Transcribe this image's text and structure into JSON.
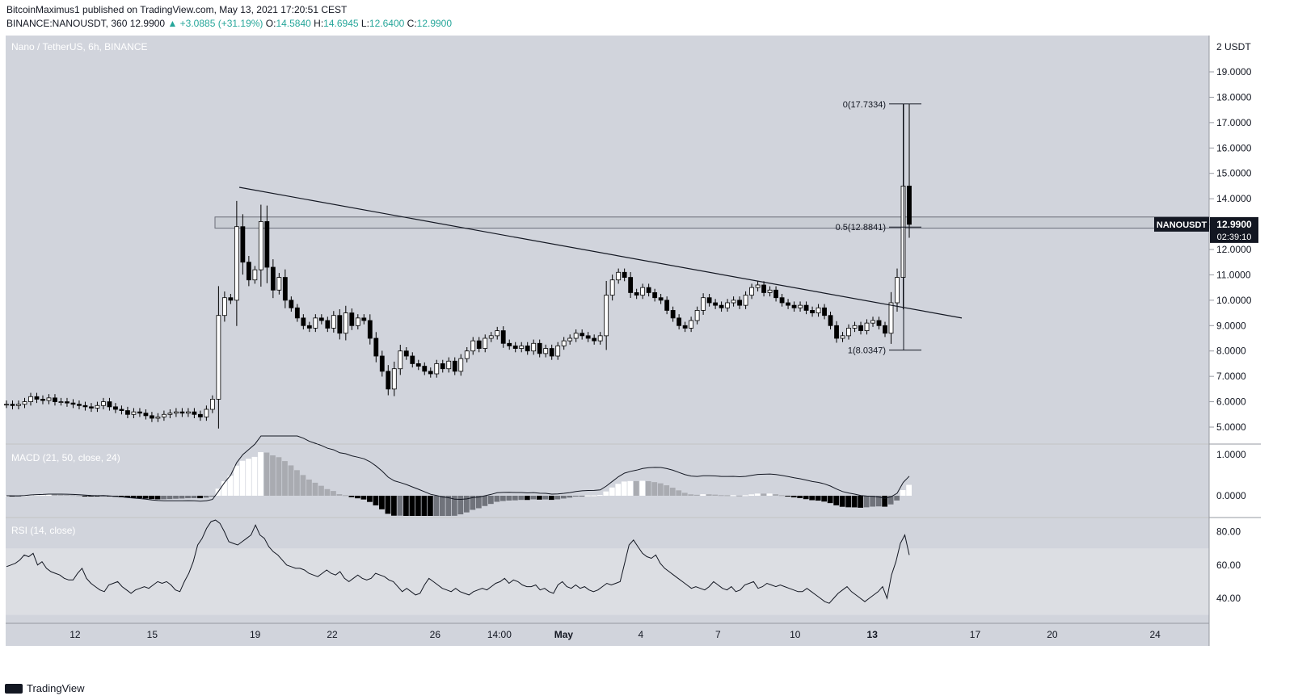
{
  "header": {
    "line1": "BitcoinMaximus1 published on TradingView.com, May 13, 2021 17:20:51 CEST",
    "symbol": "BINANCE:NANOUSDT, 360",
    "last": "12.9900",
    "change": "▲ +3.0885 (+31.19%)",
    "o_label": "O:",
    "o_val": "14.5840",
    "h_label": "H:",
    "h_val": "14.6945",
    "l_label": "L:",
    "l_val": "12.6400",
    "c_label": "C:",
    "c_val": "12.9900"
  },
  "colors": {
    "pane_bg": "#d1d4dc",
    "rsi_band": "#dcdee3",
    "candle_up": "#ffffff",
    "candle_down": "#000000",
    "line": "#131722",
    "positive": "#26a69a"
  },
  "footer": {
    "brand": "TradingView"
  },
  "chart_data": {
    "type": "candlestick",
    "title": "Nano / TetherUS, 6h, BINANCE",
    "price_axis_unit": "USDT",
    "price_ylim": [
      4.5,
      20.0
    ],
    "price_ticks": [
      5,
      6,
      7,
      8,
      9,
      10,
      11,
      12,
      13,
      14,
      15,
      16,
      17,
      18,
      19
    ],
    "price_tick_labels": [
      "5.0000",
      "6.0000",
      "7.0000",
      "8.0000",
      "9.0000",
      "10.0000",
      "11.0000",
      "12.0000",
      "13.0000",
      "14.0000",
      "15.0000",
      "16.0000",
      "17.0000",
      "18.0000",
      "19.0000"
    ],
    "price_top_label": "2 USDT",
    "x_labels": [
      {
        "label": "12",
        "x": 11
      },
      {
        "label": "15",
        "x": 14
      },
      {
        "label": "19",
        "x": 18
      },
      {
        "label": "22",
        "x": 21
      },
      {
        "label": "26",
        "x": 25
      },
      {
        "label": "14:00",
        "x": 27.5
      },
      {
        "label": "May",
        "x": 30
      },
      {
        "label": "4",
        "x": 33
      },
      {
        "label": "7",
        "x": 36
      },
      {
        "label": "10",
        "x": 39
      },
      {
        "label": "13",
        "x": 42
      },
      {
        "label": "17",
        "x": 46
      },
      {
        "label": "20",
        "x": 49
      },
      {
        "label": "24",
        "x": 53
      }
    ],
    "x_range": [
      8.3,
      55.1
    ],
    "closes": [
      5.9,
      5.85,
      5.9,
      6.0,
      6.2,
      6.1,
      6.05,
      6.15,
      6.0,
      6.0,
      5.95,
      5.9,
      5.85,
      5.8,
      5.75,
      5.85,
      6.0,
      5.8,
      5.7,
      5.65,
      5.5,
      5.6,
      5.55,
      5.45,
      5.35,
      5.4,
      5.5,
      5.55,
      5.6,
      5.55,
      5.6,
      5.5,
      5.4,
      5.7,
      6.1,
      9.4,
      10.1,
      10.0,
      12.9,
      11.5,
      10.8,
      11.2,
      13.1,
      11.3,
      10.4,
      10.9,
      10.0,
      9.7,
      9.3,
      9.0,
      8.9,
      9.3,
      9.2,
      8.9,
      9.4,
      8.7,
      9.5,
      9.0,
      9.3,
      9.2,
      8.5,
      7.8,
      7.2,
      6.5,
      7.3,
      8.0,
      7.8,
      7.5,
      7.4,
      7.2,
      7.1,
      7.5,
      7.3,
      7.6,
      7.2,
      7.7,
      8.0,
      8.4,
      8.1,
      8.5,
      8.6,
      8.8,
      8.3,
      8.2,
      8.1,
      8.2,
      8.0,
      8.3,
      7.9,
      8.1,
      7.8,
      8.2,
      8.4,
      8.5,
      8.7,
      8.6,
      8.5,
      8.4,
      8.6,
      10.2,
      10.8,
      11.1,
      10.9,
      10.3,
      10.2,
      10.5,
      10.3,
      10.1,
      10.0,
      9.6,
      9.3,
      9.0,
      8.9,
      9.2,
      9.6,
      10.1,
      9.9,
      9.8,
      9.7,
      9.9,
      10.0,
      9.8,
      10.2,
      10.5,
      10.6,
      10.3,
      10.4,
      10.1,
      9.9,
      9.8,
      9.7,
      9.8,
      9.6,
      9.5,
      9.7,
      9.4,
      9.0,
      8.5,
      8.6,
      8.9,
      9.0,
      8.8,
      9.1,
      9.2,
      9.0,
      8.7,
      9.9,
      10.9,
      14.5,
      12.99
    ],
    "opens_note": "each candle opens at the previous close",
    "fib_levels": [
      {
        "label": "0(17.7334)",
        "value": 17.7334
      },
      {
        "label": "0.5(12.8841)",
        "value": 12.8841
      },
      {
        "label": "1(8.0347)",
        "value": 8.0347
      }
    ],
    "resistance_zone": [
      12.84,
      13.28
    ],
    "trendline": [
      {
        "x": 17.7,
        "y": 14.45
      },
      {
        "x": 45.7,
        "y": 9.3
      }
    ],
    "last_price_label": {
      "symbol": "NANOUSDT",
      "price": "12.9900",
      "countdown": "02:39:10"
    },
    "macd": {
      "label": "MACD (21, 50, close, 24)",
      "ticks": [
        "1.0000",
        "0.0000"
      ]
    },
    "rsi": {
      "label": "RSI (14, close)",
      "ticks": [
        "80.00",
        "60.00",
        "40.00"
      ],
      "band": [
        30,
        70
      ],
      "values": [
        59,
        60,
        61,
        63,
        66,
        65,
        67,
        60,
        62,
        58,
        56,
        55,
        54,
        52,
        51,
        51,
        55,
        58,
        52,
        49,
        47,
        45,
        44,
        48,
        49,
        50,
        47,
        45,
        43,
        45,
        46,
        47,
        46,
        48,
        50,
        49,
        50,
        48,
        45,
        44,
        50,
        55,
        62,
        72,
        76,
        82,
        86,
        87,
        85,
        80,
        74,
        73,
        72,
        74,
        76,
        78,
        84,
        78,
        76,
        71,
        68,
        66,
        63,
        60,
        59,
        58,
        58,
        57,
        55,
        54,
        53,
        55,
        57,
        55,
        54,
        56,
        52,
        50,
        52,
        54,
        52,
        51,
        52,
        55,
        54,
        53,
        51,
        50,
        47,
        44,
        46,
        44,
        42,
        43,
        48,
        52,
        50,
        48,
        46,
        45,
        44,
        46,
        44,
        43,
        42,
        44,
        45,
        46,
        45,
        47,
        49,
        50,
        52,
        49,
        51,
        50,
        48,
        47,
        47,
        48,
        45,
        46,
        44,
        43,
        48,
        50,
        47,
        46,
        48,
        46,
        47,
        45,
        44,
        45,
        47,
        49,
        48,
        49,
        50,
        61,
        72,
        75,
        71,
        67,
        65,
        64,
        66,
        61,
        58,
        56,
        54,
        52,
        50,
        48,
        46,
        47,
        46,
        45,
        47,
        50,
        48,
        46,
        45,
        47,
        44,
        45,
        48,
        49,
        50,
        46,
        47,
        49,
        48,
        47,
        48,
        47,
        46,
        45,
        44,
        44,
        46,
        44,
        42,
        40,
        38,
        37,
        40,
        43,
        45,
        47,
        44,
        42,
        40,
        38,
        40,
        42,
        44,
        47,
        40,
        54,
        62,
        73,
        78,
        66
      ]
    }
  }
}
